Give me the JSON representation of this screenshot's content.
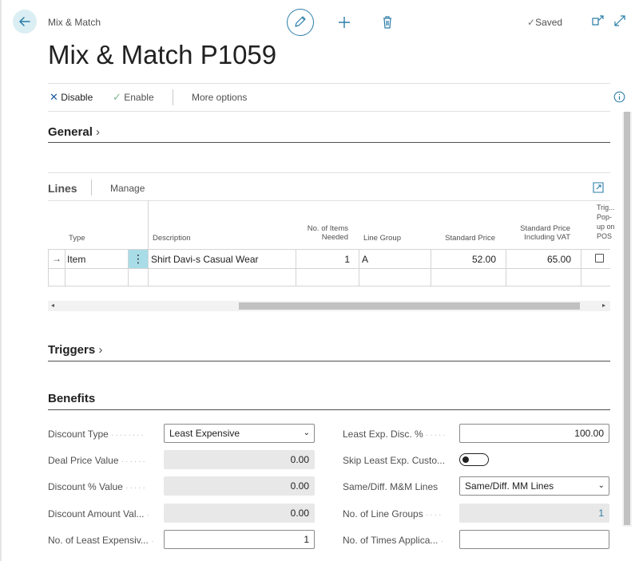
{
  "header": {
    "breadcrumb": "Mix & Match",
    "title": "Mix & Match P1059",
    "saved_label": "Saved"
  },
  "actions": {
    "disable_label": "Disable",
    "enable_label": "Enable",
    "more_options_label": "More options"
  },
  "sections": {
    "general": "General",
    "triggers": "Triggers",
    "benefits": "Benefits"
  },
  "lines": {
    "title": "Lines",
    "manage_label": "Manage",
    "columns": {
      "type": "Type",
      "description": "Description",
      "items_needed_1": "No. of Items",
      "items_needed_2": "Needed",
      "line_group": "Line Group",
      "standard_price": "Standard Price",
      "price_vat_1": "Standard Price",
      "price_vat_2": "Including VAT",
      "trig_1": "Trig...",
      "trig_2": "Pop-",
      "trig_3": "up on",
      "trig_4": "POS"
    },
    "rows": [
      {
        "type": "Item",
        "description": "Shirt Davi-s Casual Wear",
        "items_needed": "1",
        "line_group": "A",
        "standard_price": "52.00",
        "price_incl_vat": "65.00"
      }
    ]
  },
  "benefits": {
    "discount_type_label": "Discount Type",
    "discount_type_value": "Least Expensive",
    "deal_price_label": "Deal Price Value",
    "deal_price_value": "0.00",
    "discount_pct_label": "Discount % Value",
    "discount_pct_value": "0.00",
    "discount_amt_label": "Discount Amount Val...",
    "discount_amt_value": "0.00",
    "least_exp_count_label": "No. of Least Expensiv...",
    "least_exp_count_value": "1",
    "least_exp_disc_label": "Least Exp. Disc. %",
    "least_exp_disc_value": "100.00",
    "skip_least_label": "Skip Least Exp. Custo...",
    "same_diff_label": "Same/Diff. M&M Lines",
    "same_diff_value": "Same/Diff. MM Lines",
    "line_groups_label": "No. of Line Groups",
    "line_groups_value": "1",
    "times_applicable_label": "No. of Times Applica...",
    "times_applicable_value": ""
  },
  "colors": {
    "accent": "#2b7da8",
    "teal_cell": "#a8dde8",
    "readonly_bg": "#e8e8e8"
  }
}
